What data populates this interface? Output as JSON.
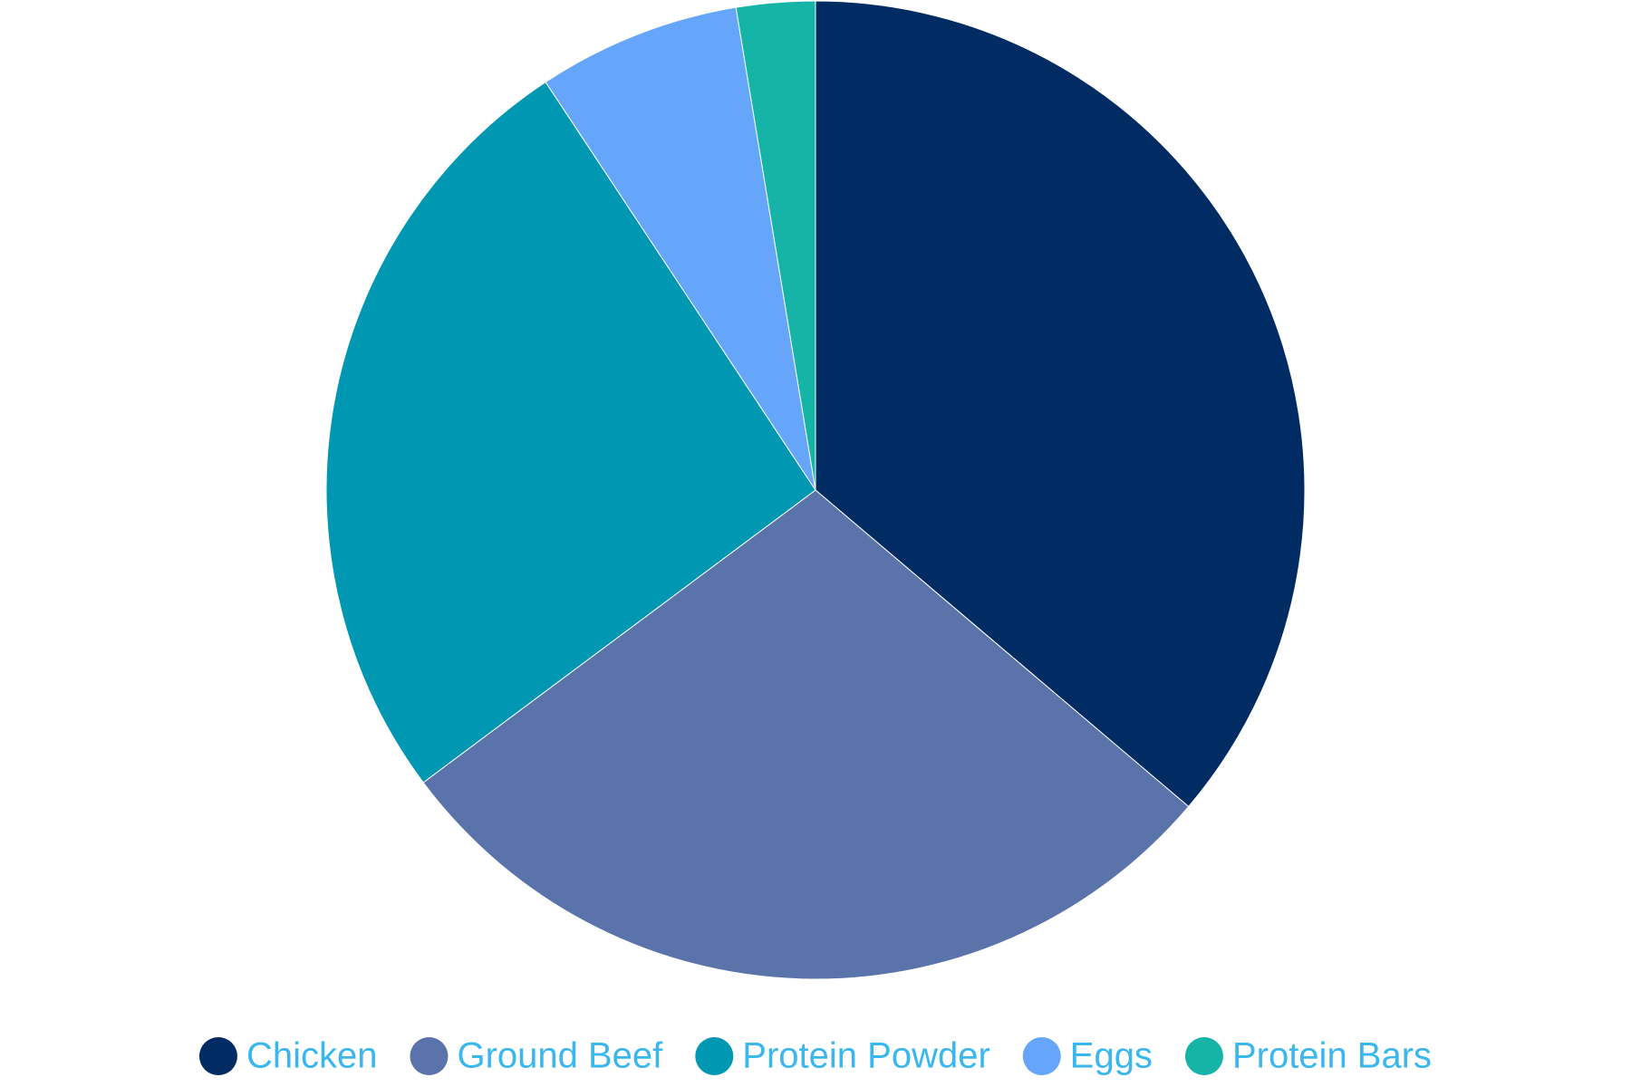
{
  "chart_data": {
    "type": "pie",
    "categories": [
      "Chicken",
      "Ground Beef",
      "Protein Powder",
      "Eggs",
      "Protein Bars"
    ],
    "values": [
      36.2,
      28.6,
      25.9,
      6.7,
      2.6
    ],
    "colors": [
      "#012b63",
      "#5a73aa",
      "#0097b3",
      "#66a6fa",
      "#16b4a6"
    ],
    "legend": "bottom"
  }
}
